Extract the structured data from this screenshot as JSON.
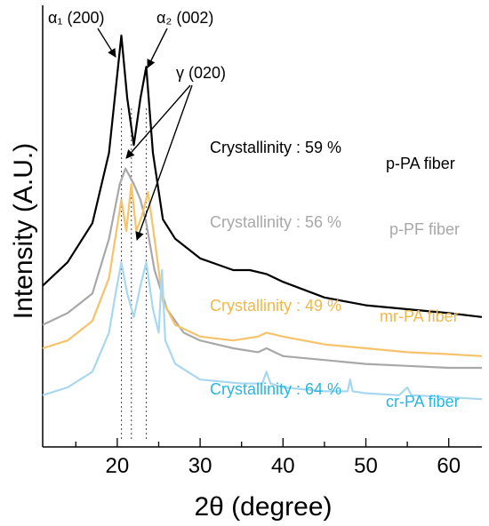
{
  "chart_data": {
    "type": "line",
    "xlabel": "2θ (degree)",
    "ylabel": "Intensity (A.U.)",
    "xlim": [
      11,
      64
    ],
    "x_ticks": [
      20,
      30,
      40,
      50,
      60
    ],
    "grid": false,
    "legend": "none",
    "series": [
      {
        "name": "p-PA fiber",
        "crystallinity": "Crystallinity : 59 %",
        "color": "#000000",
        "points": [
          [
            11,
            0.36
          ],
          [
            14,
            0.42
          ],
          [
            17,
            0.52
          ],
          [
            19,
            0.7
          ],
          [
            19.8,
            0.86
          ],
          [
            20.5,
            1.0
          ],
          [
            21.2,
            0.84
          ],
          [
            22.0,
            0.72
          ],
          [
            22.8,
            0.84
          ],
          [
            23.5,
            0.92
          ],
          [
            24.3,
            0.7
          ],
          [
            25.5,
            0.53
          ],
          [
            27,
            0.48
          ],
          [
            30,
            0.43
          ],
          [
            34,
            0.4
          ],
          [
            36,
            0.4
          ],
          [
            38,
            0.39
          ],
          [
            40,
            0.37
          ],
          [
            45,
            0.33
          ],
          [
            50,
            0.31
          ],
          [
            55,
            0.3
          ],
          [
            60,
            0.29
          ],
          [
            64,
            0.28
          ]
        ]
      },
      {
        "name": "p-PF fiber",
        "crystallinity": "Crystallinity : 56 %",
        "color": "#a8a8a8",
        "points": [
          [
            11,
            0.26
          ],
          [
            14,
            0.29
          ],
          [
            17,
            0.34
          ],
          [
            19,
            0.48
          ],
          [
            20.3,
            0.62
          ],
          [
            21.0,
            0.66
          ],
          [
            22.0,
            0.62
          ],
          [
            22.8,
            0.58
          ],
          [
            23.5,
            0.52
          ],
          [
            24.5,
            0.4
          ],
          [
            26,
            0.3
          ],
          [
            28,
            0.24
          ],
          [
            30,
            0.22
          ],
          [
            34,
            0.2
          ],
          [
            37,
            0.19
          ],
          [
            38,
            0.2
          ],
          [
            40,
            0.18
          ],
          [
            45,
            0.17
          ],
          [
            50,
            0.16
          ],
          [
            55,
            0.155
          ],
          [
            60,
            0.15
          ],
          [
            64,
            0.15
          ]
        ]
      },
      {
        "name": "mr-PA fiber",
        "crystallinity": "Crystallinity : 49 %",
        "color": "#f6c36a",
        "points": [
          [
            11,
            0.2
          ],
          [
            14,
            0.22
          ],
          [
            17,
            0.27
          ],
          [
            19,
            0.38
          ],
          [
            20.5,
            0.58
          ],
          [
            21.1,
            0.5
          ],
          [
            21.7,
            0.62
          ],
          [
            22.3,
            0.5
          ],
          [
            23.0,
            0.54
          ],
          [
            23.7,
            0.6
          ],
          [
            24.5,
            0.48
          ],
          [
            25.5,
            0.32
          ],
          [
            27,
            0.26
          ],
          [
            30,
            0.23
          ],
          [
            34,
            0.22
          ],
          [
            37,
            0.23
          ],
          [
            38,
            0.24
          ],
          [
            40,
            0.23
          ],
          [
            45,
            0.21
          ],
          [
            50,
            0.2
          ],
          [
            55,
            0.19
          ],
          [
            60,
            0.185
          ],
          [
            64,
            0.18
          ]
        ]
      },
      {
        "name": "cr-PA fiber",
        "crystallinity": "Crystallinity : 64 %",
        "color": "#a8d8f0",
        "points": [
          [
            11,
            0.08
          ],
          [
            14,
            0.1
          ],
          [
            17,
            0.14
          ],
          [
            19,
            0.24
          ],
          [
            19.8,
            0.34
          ],
          [
            20.5,
            0.42
          ],
          [
            21.2,
            0.34
          ],
          [
            22.0,
            0.28
          ],
          [
            22.8,
            0.36
          ],
          [
            23.5,
            0.42
          ],
          [
            24.3,
            0.3
          ],
          [
            25.0,
            0.24
          ],
          [
            25.4,
            0.4
          ],
          [
            25.8,
            0.22
          ],
          [
            27,
            0.16
          ],
          [
            30,
            0.12
          ],
          [
            35,
            0.11
          ],
          [
            37.5,
            0.11
          ],
          [
            38,
            0.14
          ],
          [
            38.5,
            0.11
          ],
          [
            40,
            0.1
          ],
          [
            45,
            0.09
          ],
          [
            47.8,
            0.09
          ],
          [
            48.1,
            0.12
          ],
          [
            48.4,
            0.09
          ],
          [
            50,
            0.085
          ],
          [
            54,
            0.08
          ],
          [
            55,
            0.1
          ],
          [
            55.5,
            0.08
          ],
          [
            60,
            0.075
          ],
          [
            64,
            0.07
          ]
        ]
      }
    ],
    "peak_labels": {
      "alpha1": "α₁ (200)",
      "alpha2": "α₂ (002)",
      "gamma": "γ (020)"
    },
    "reference_lines_x": [
      20.5,
      21.7,
      23.5
    ]
  }
}
